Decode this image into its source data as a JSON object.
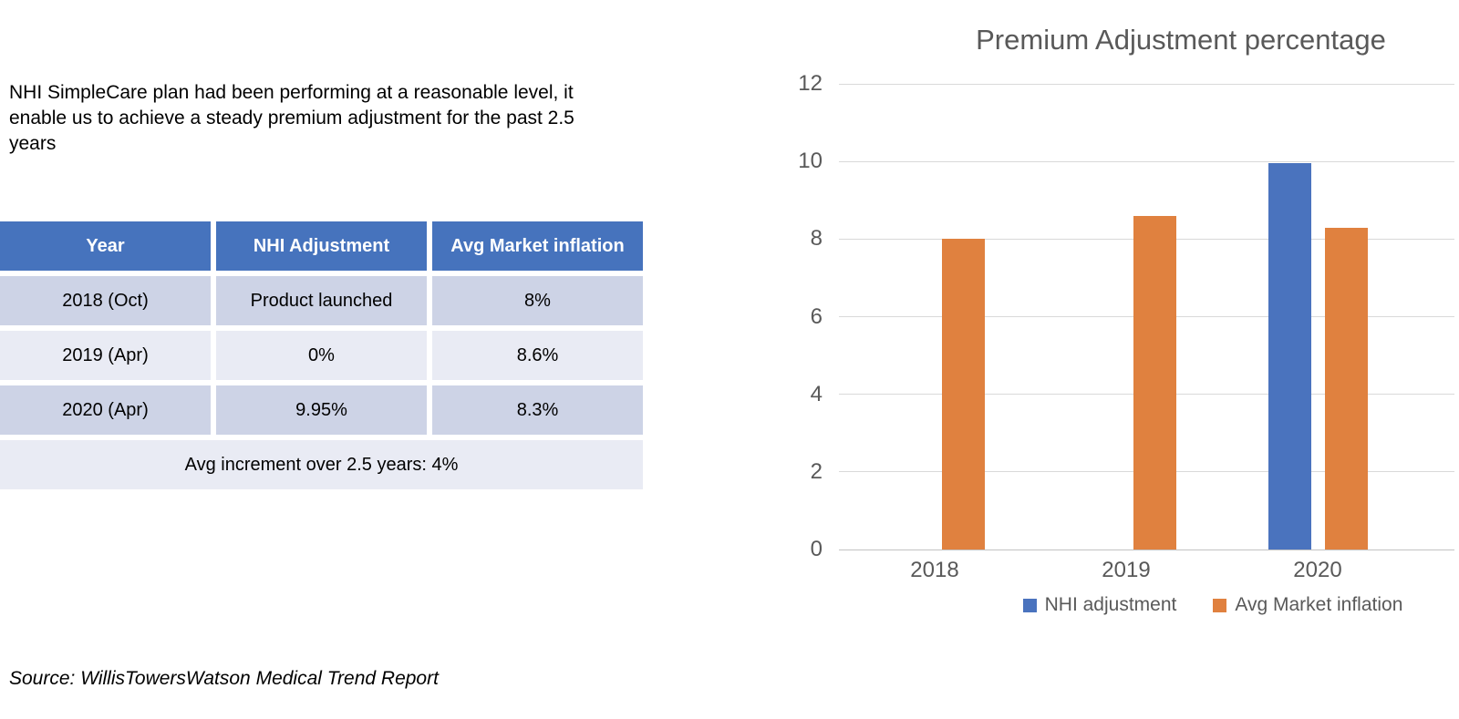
{
  "colors": {
    "header_blue": "#4673BD",
    "row_dark": "#CDD3E6",
    "row_light": "#E9EBF4",
    "title_gray": "#595959",
    "axis_label_gray": "#595959",
    "gridline": "#D9D9D9",
    "axis_line": "#C2C2C2",
    "bar_blue": "#4A73BE",
    "bar_orange": "#E0813F"
  },
  "intro": {
    "lines": [
      "NHI SimpleCare plan had been performing at a reasonable level, it",
      "enable us to achieve a steady premium adjustment for the past 2.5",
      "years"
    ]
  },
  "table": {
    "headers": [
      "Year",
      "NHI Adjustment",
      "Avg Market inflation"
    ],
    "rows": [
      [
        "2018 (Oct)",
        "Product launched",
        "8%"
      ],
      [
        "2019 (Apr)",
        "0%",
        "8.6%"
      ],
      [
        "2020 (Apr)",
        "9.95%",
        "8.3%"
      ]
    ],
    "footer": "Avg increment over 2.5 years: 4%"
  },
  "source_note": "Source: WillisTowersWatson Medical Trend Report",
  "chart_data": {
    "type": "bar",
    "title": "Premium Adjustment percentage",
    "categories": [
      "2018",
      "2019",
      "2020"
    ],
    "series": [
      {
        "name": "NHI adjustment",
        "color": "#4A73BE",
        "values": [
          null,
          0,
          9.95
        ]
      },
      {
        "name": "Avg Market inflation",
        "color": "#E0813F",
        "values": [
          8,
          8.6,
          8.3
        ]
      }
    ],
    "ylim": [
      0,
      12
    ],
    "ytick_step": 2,
    "yticks": [
      0,
      2,
      4,
      6,
      8,
      10,
      12
    ],
    "xlabel": "",
    "ylabel": "",
    "grid": true,
    "legend_position": "bottom"
  }
}
